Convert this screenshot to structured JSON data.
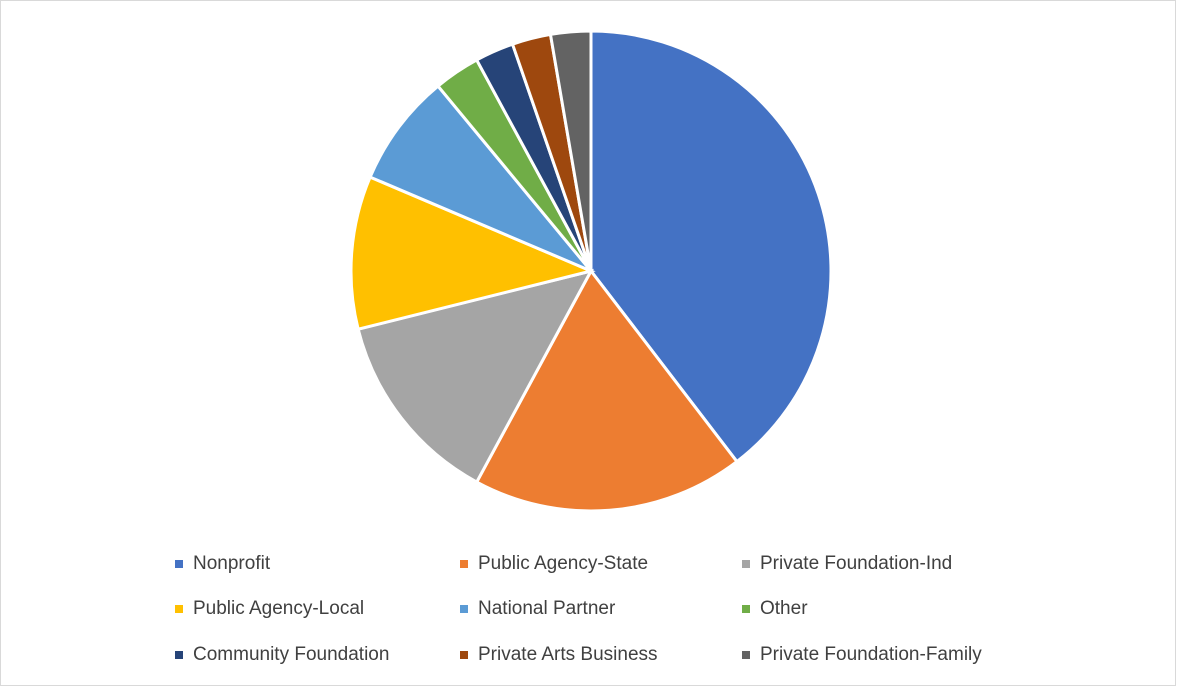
{
  "chart_data": {
    "type": "pie",
    "categories": [
      "Nonprofit",
      "Public Agency-State",
      "Private Foundation-Ind",
      "Public Agency-Local",
      "National Partner",
      "Other",
      "Community Foundation",
      "Private Arts Business",
      "Private Foundation-Family"
    ],
    "values": [
      39.6,
      18.3,
      13.2,
      10.3,
      7.6,
      3.1,
      2.6,
      2.6,
      2.7
    ],
    "colors": [
      "#4472c4",
      "#ed7d31",
      "#a5a5a5",
      "#ffc000",
      "#5b9bd5",
      "#70ad47",
      "#264478",
      "#9e480e",
      "#636363"
    ],
    "legend": "bottom"
  }
}
